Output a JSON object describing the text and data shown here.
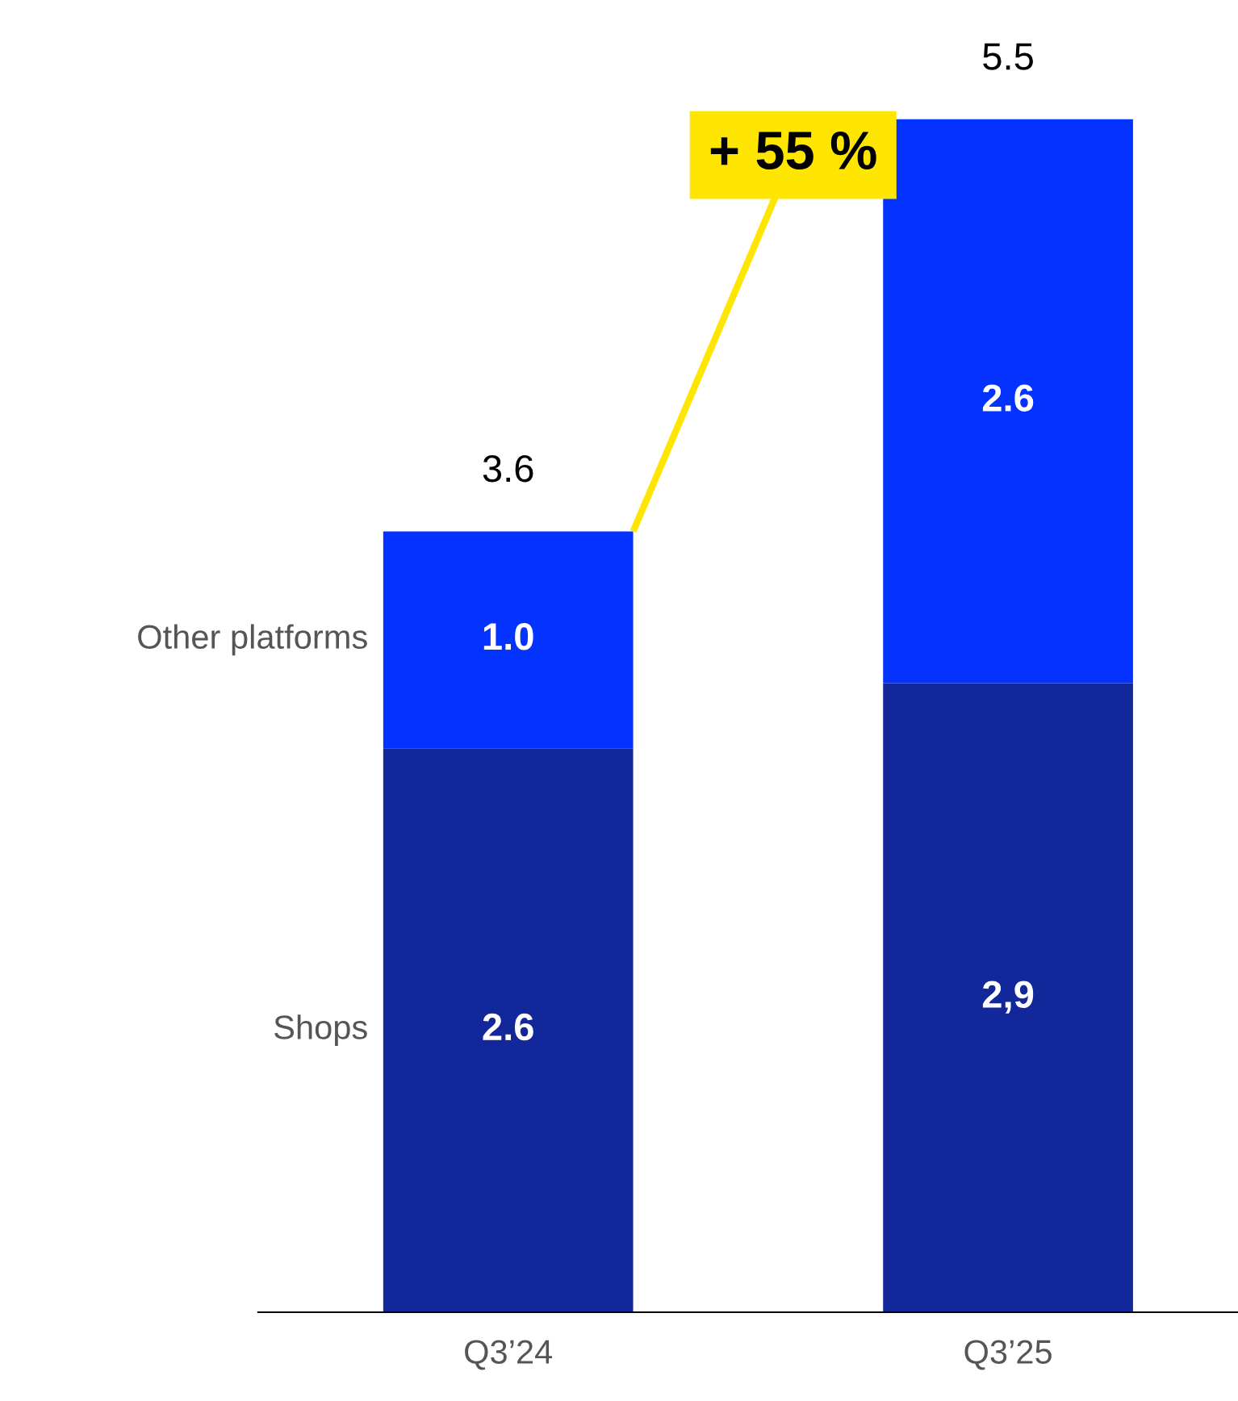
{
  "chart_data": {
    "type": "bar",
    "stacked": true,
    "categories": [
      "Q3’24",
      "Q3’25"
    ],
    "series": [
      {
        "name": "Shops",
        "color": "#12289a",
        "values": [
          2.6,
          2.9
        ],
        "value_labels": [
          "2.6",
          "2,9"
        ]
      },
      {
        "name": "Other platforms",
        "color": "#0433ff",
        "values": [
          1.0,
          2.6
        ],
        "value_labels": [
          "1.0",
          "2.6"
        ]
      }
    ],
    "totals": [
      "3.6",
      "5.5"
    ],
    "annotations": [
      "+ 55 %"
    ],
    "grid": false,
    "legend": false,
    "tick_labels": "x"
  }
}
